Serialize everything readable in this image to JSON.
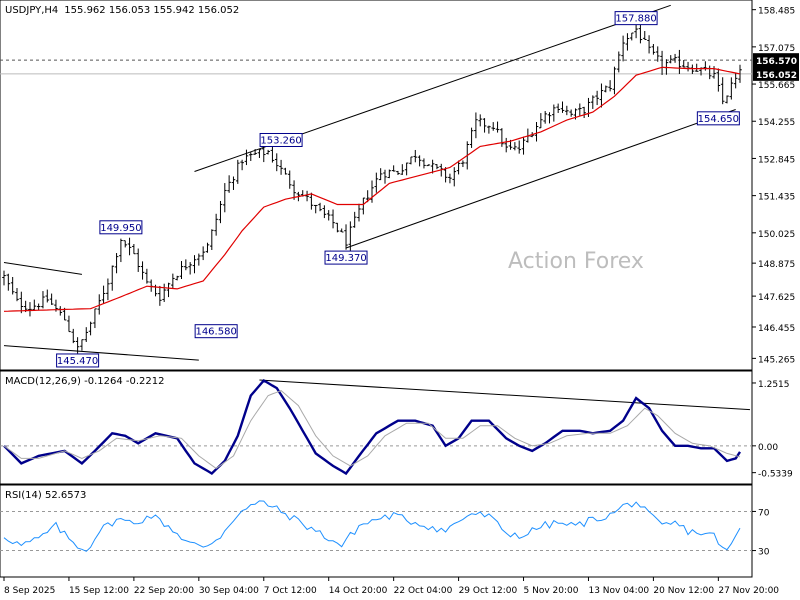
{
  "symbol_header": {
    "symbol": "USDJPY,H4",
    "ohlc": "155.962 156.053 155.942 156.052"
  },
  "watermark": "Action Forex",
  "colors": {
    "background": "#ffffff",
    "bars": "#000000",
    "ma_line": "#e00000",
    "macd_line": "#00008b",
    "signal_line": "#a9a9a9",
    "rsi_line": "#1e90ff",
    "grid_dash": "#999999",
    "label_text": "#00008b",
    "price_tag": "#000000",
    "watermark": "#bdbdbd"
  },
  "chart_data": [
    {
      "type": "candlestick-ohlc-bars",
      "panel": "price",
      "title": "USDJPY,H4",
      "ylim": [
        144.9,
        158.7
      ],
      "y_ticks": [
        "158.485",
        "157.075",
        "155.665",
        "154.255",
        "152.845",
        "151.435",
        "150.025",
        "148.875",
        "147.625",
        "146.455",
        "145.265"
      ],
      "y_tick_values": [
        158.485,
        157.075,
        155.665,
        154.255,
        152.845,
        151.435,
        150.025,
        148.875,
        147.625,
        146.455,
        145.265
      ],
      "price_tags": [
        {
          "label": "156.570",
          "value": 156.57,
          "style": "dashed"
        },
        {
          "label": "156.052",
          "value": 156.052,
          "style": "current"
        }
      ],
      "swing_labels": [
        {
          "label": "149.950",
          "bar": 27,
          "value": 149.95,
          "side": "above"
        },
        {
          "label": "146.580",
          "bar": 49,
          "value": 146.58,
          "side": "below"
        },
        {
          "label": "145.470",
          "bar": 17,
          "value": 145.47,
          "side": "below"
        },
        {
          "label": "153.260",
          "bar": 64,
          "value": 153.26,
          "side": "above"
        },
        {
          "label": "149.370",
          "bar": 79,
          "value": 149.37,
          "side": "below"
        },
        {
          "label": "157.880",
          "bar": 146,
          "value": 157.88,
          "side": "above"
        },
        {
          "label": "154.650",
          "bar": 165,
          "value": 154.65,
          "side": "below"
        }
      ],
      "trend_lines": [
        {
          "from": [
            44,
            152.35
          ],
          "to": [
            154,
            158.65
          ]
        },
        {
          "from": [
            79,
            149.45
          ],
          "to": [
            169,
            154.7
          ]
        },
        {
          "from": [
            0,
            148.9
          ],
          "to": [
            18,
            148.45
          ]
        },
        {
          "from": [
            0,
            145.75
          ],
          "to": [
            45,
            145.2
          ]
        }
      ],
      "anchors": [
        [
          0,
          148.35
        ],
        [
          3,
          147.4
        ],
        [
          6,
          147.2
        ],
        [
          10,
          147.5
        ],
        [
          14,
          146.75
        ],
        [
          17,
          145.6
        ],
        [
          20,
          146.6
        ],
        [
          24,
          148.2
        ],
        [
          27,
          149.8
        ],
        [
          30,
          149.2
        ],
        [
          33,
          148.1
        ],
        [
          36,
          147.6
        ],
        [
          39,
          148.35
        ],
        [
          44,
          149.1
        ],
        [
          47,
          149.5
        ],
        [
          51,
          151.6
        ],
        [
          55,
          152.8
        ],
        [
          58,
          153.0
        ],
        [
          61,
          153.1
        ],
        [
          64,
          152.4
        ],
        [
          67,
          151.7
        ],
        [
          70,
          151.3
        ],
        [
          73,
          150.8
        ],
        [
          76,
          150.4
        ],
        [
          79,
          149.7
        ],
        [
          83,
          151.2
        ],
        [
          87,
          152.3
        ],
        [
          91,
          152.35
        ],
        [
          95,
          153.0
        ],
        [
          99,
          152.5
        ],
        [
          103,
          152.1
        ],
        [
          106,
          152.8
        ],
        [
          109,
          154.2
        ],
        [
          113,
          154.1
        ],
        [
          116,
          153.2
        ],
        [
          119,
          153.2
        ],
        [
          122,
          153.9
        ],
        [
          125,
          154.5
        ],
        [
          128,
          154.85
        ],
        [
          131,
          154.5
        ],
        [
          134,
          154.7
        ],
        [
          137,
          155.2
        ],
        [
          140,
          155.6
        ],
        [
          143,
          157.3
        ],
        [
          146,
          157.75
        ],
        [
          149,
          156.9
        ],
        [
          152,
          156.4
        ],
        [
          155,
          156.5
        ],
        [
          158,
          156.35
        ],
        [
          161,
          156.2
        ],
        [
          164,
          155.95
        ],
        [
          166,
          155.0
        ],
        [
          168,
          155.6
        ],
        [
          170,
          156.05
        ]
      ],
      "moving_average": {
        "color": "#e00000",
        "points": [
          [
            0,
            147.05
          ],
          [
            10,
            147.1
          ],
          [
            20,
            147.15
          ],
          [
            27,
            147.6
          ],
          [
            33,
            148.0
          ],
          [
            40,
            147.9
          ],
          [
            46,
            148.2
          ],
          [
            51,
            149.2
          ],
          [
            55,
            150.1
          ],
          [
            60,
            151.0
          ],
          [
            65,
            151.3
          ],
          [
            71,
            151.5
          ],
          [
            77,
            151.1
          ],
          [
            83,
            151.1
          ],
          [
            89,
            151.9
          ],
          [
            96,
            152.2
          ],
          [
            103,
            152.5
          ],
          [
            110,
            153.3
          ],
          [
            117,
            153.5
          ],
          [
            124,
            153.85
          ],
          [
            130,
            154.3
          ],
          [
            136,
            154.6
          ],
          [
            141,
            155.2
          ],
          [
            146,
            156.0
          ],
          [
            152,
            156.3
          ],
          [
            158,
            156.25
          ],
          [
            164,
            156.25
          ],
          [
            170,
            156.05
          ]
        ]
      }
    },
    {
      "type": "line",
      "panel": "macd",
      "title": "MACD(12,26,9) -0.1264 -0.2212",
      "ylim": [
        -0.72,
        1.45
      ],
      "y_ticks": [
        "1.2515",
        "0.00",
        "-0.5339"
      ],
      "y_tick_values": [
        1.2515,
        0.0,
        -0.5339
      ],
      "zero_line": 0.0,
      "series": [
        {
          "role": "macd",
          "values_at": [
            [
              0,
              0.0
            ],
            [
              4,
              -0.35
            ],
            [
              8,
              -0.2
            ],
            [
              14,
              -0.1
            ],
            [
              18,
              -0.35
            ],
            [
              21,
              -0.1
            ],
            [
              25,
              0.25
            ],
            [
              28,
              0.2
            ],
            [
              31,
              0.05
            ],
            [
              35,
              0.25
            ],
            [
              40,
              0.15
            ],
            [
              44,
              -0.35
            ],
            [
              48,
              -0.55
            ],
            [
              51,
              -0.3
            ],
            [
              54,
              0.2
            ],
            [
              57,
              1.0
            ],
            [
              60,
              1.3
            ],
            [
              63,
              1.15
            ],
            [
              66,
              0.75
            ],
            [
              69,
              0.3
            ],
            [
              72,
              -0.15
            ],
            [
              76,
              -0.4
            ],
            [
              79,
              -0.55
            ],
            [
              82,
              -0.2
            ],
            [
              86,
              0.25
            ],
            [
              91,
              0.5
            ],
            [
              95,
              0.5
            ],
            [
              99,
              0.4
            ],
            [
              102,
              0.0
            ],
            [
              105,
              0.15
            ],
            [
              108,
              0.5
            ],
            [
              112,
              0.5
            ],
            [
              116,
              0.15
            ],
            [
              119,
              0.0
            ],
            [
              122,
              -0.1
            ],
            [
              125,
              0.05
            ],
            [
              129,
              0.3
            ],
            [
              133,
              0.3
            ],
            [
              136,
              0.25
            ],
            [
              140,
              0.3
            ],
            [
              143,
              0.5
            ],
            [
              146,
              0.95
            ],
            [
              149,
              0.75
            ],
            [
              152,
              0.3
            ],
            [
              155,
              0.0
            ],
            [
              158,
              0.0
            ],
            [
              161,
              -0.05
            ],
            [
              164,
              -0.05
            ],
            [
              167,
              -0.3
            ],
            [
              169,
              -0.25
            ],
            [
              170,
              -0.12
            ]
          ]
        },
        {
          "role": "signal",
          "values_at": [
            [
              0,
              0.0
            ],
            [
              4,
              -0.25
            ],
            [
              8,
              -0.25
            ],
            [
              14,
              -0.1
            ],
            [
              18,
              -0.25
            ],
            [
              22,
              -0.1
            ],
            [
              26,
              0.15
            ],
            [
              31,
              0.1
            ],
            [
              36,
              0.2
            ],
            [
              41,
              0.15
            ],
            [
              45,
              -0.2
            ],
            [
              49,
              -0.45
            ],
            [
              53,
              -0.2
            ],
            [
              57,
              0.5
            ],
            [
              61,
              1.0
            ],
            [
              64,
              1.1
            ],
            [
              68,
              0.8
            ],
            [
              72,
              0.2
            ],
            [
              76,
              -0.2
            ],
            [
              80,
              -0.4
            ],
            [
              84,
              -0.2
            ],
            [
              88,
              0.2
            ],
            [
              93,
              0.45
            ],
            [
              98,
              0.45
            ],
            [
              102,
              0.15
            ],
            [
              106,
              0.15
            ],
            [
              110,
              0.4
            ],
            [
              114,
              0.4
            ],
            [
              118,
              0.15
            ],
            [
              122,
              0.0
            ],
            [
              126,
              0.05
            ],
            [
              130,
              0.2
            ],
            [
              135,
              0.25
            ],
            [
              140,
              0.25
            ],
            [
              144,
              0.4
            ],
            [
              148,
              0.75
            ],
            [
              151,
              0.6
            ],
            [
              155,
              0.25
            ],
            [
              159,
              0.05
            ],
            [
              163,
              0.0
            ],
            [
              167,
              -0.15
            ],
            [
              170,
              -0.22
            ]
          ]
        }
      ],
      "trend_line": {
        "from": [
          59,
          1.31
        ],
        "to": [
          173,
          0.72
        ]
      }
    },
    {
      "type": "line",
      "panel": "rsi",
      "title": "RSI(14) 52.6573",
      "ylim": [
        5,
        95
      ],
      "y_ticks": [
        "70",
        "30"
      ],
      "y_tick_values": [
        70,
        30
      ],
      "levels": [
        70,
        30
      ],
      "series": [
        {
          "role": "rsi",
          "values_at": [
            [
              0,
              45
            ],
            [
              4,
              35
            ],
            [
              8,
              42
            ],
            [
              12,
              55
            ],
            [
              16,
              38
            ],
            [
              19,
              30
            ],
            [
              22,
              50
            ],
            [
              26,
              62
            ],
            [
              30,
              58
            ],
            [
              34,
              66
            ],
            [
              38,
              55
            ],
            [
              42,
              40
            ],
            [
              46,
              32
            ],
            [
              50,
              45
            ],
            [
              54,
              68
            ],
            [
              57,
              75
            ],
            [
              60,
              80
            ],
            [
              63,
              72
            ],
            [
              66,
              65
            ],
            [
              70,
              55
            ],
            [
              74,
              45
            ],
            [
              78,
              35
            ],
            [
              82,
              55
            ],
            [
              86,
              62
            ],
            [
              90,
              66
            ],
            [
              94,
              60
            ],
            [
              98,
              55
            ],
            [
              102,
              50
            ],
            [
              105,
              60
            ],
            [
              108,
              68
            ],
            [
              112,
              65
            ],
            [
              116,
              48
            ],
            [
              120,
              45
            ],
            [
              124,
              55
            ],
            [
              128,
              58
            ],
            [
              132,
              55
            ],
            [
              136,
              62
            ],
            [
              140,
              66
            ],
            [
              143,
              75
            ],
            [
              146,
              80
            ],
            [
              149,
              66
            ],
            [
              152,
              55
            ],
            [
              155,
              58
            ],
            [
              158,
              50
            ],
            [
              161,
              48
            ],
            [
              164,
              45
            ],
            [
              167,
              28
            ],
            [
              169,
              45
            ],
            [
              170,
              53
            ]
          ]
        }
      ]
    }
  ],
  "x_axis": {
    "labels": [
      "8 Sep 2025",
      "15 Sep 12:00",
      "22 Sep 20:00",
      "30 Sep 04:00",
      "7 Oct 12:00",
      "14 Oct 20:00",
      "22 Oct 04:00",
      "29 Oct 12:00",
      "5 Nov 20:00",
      "13 Nov 04:00",
      "20 Nov 12:00",
      "27 Nov 20:00"
    ],
    "label_bars": [
      0,
      15,
      30,
      45,
      60,
      75,
      90,
      105,
      120,
      135,
      150,
      165
    ],
    "bar_count": 171
  }
}
